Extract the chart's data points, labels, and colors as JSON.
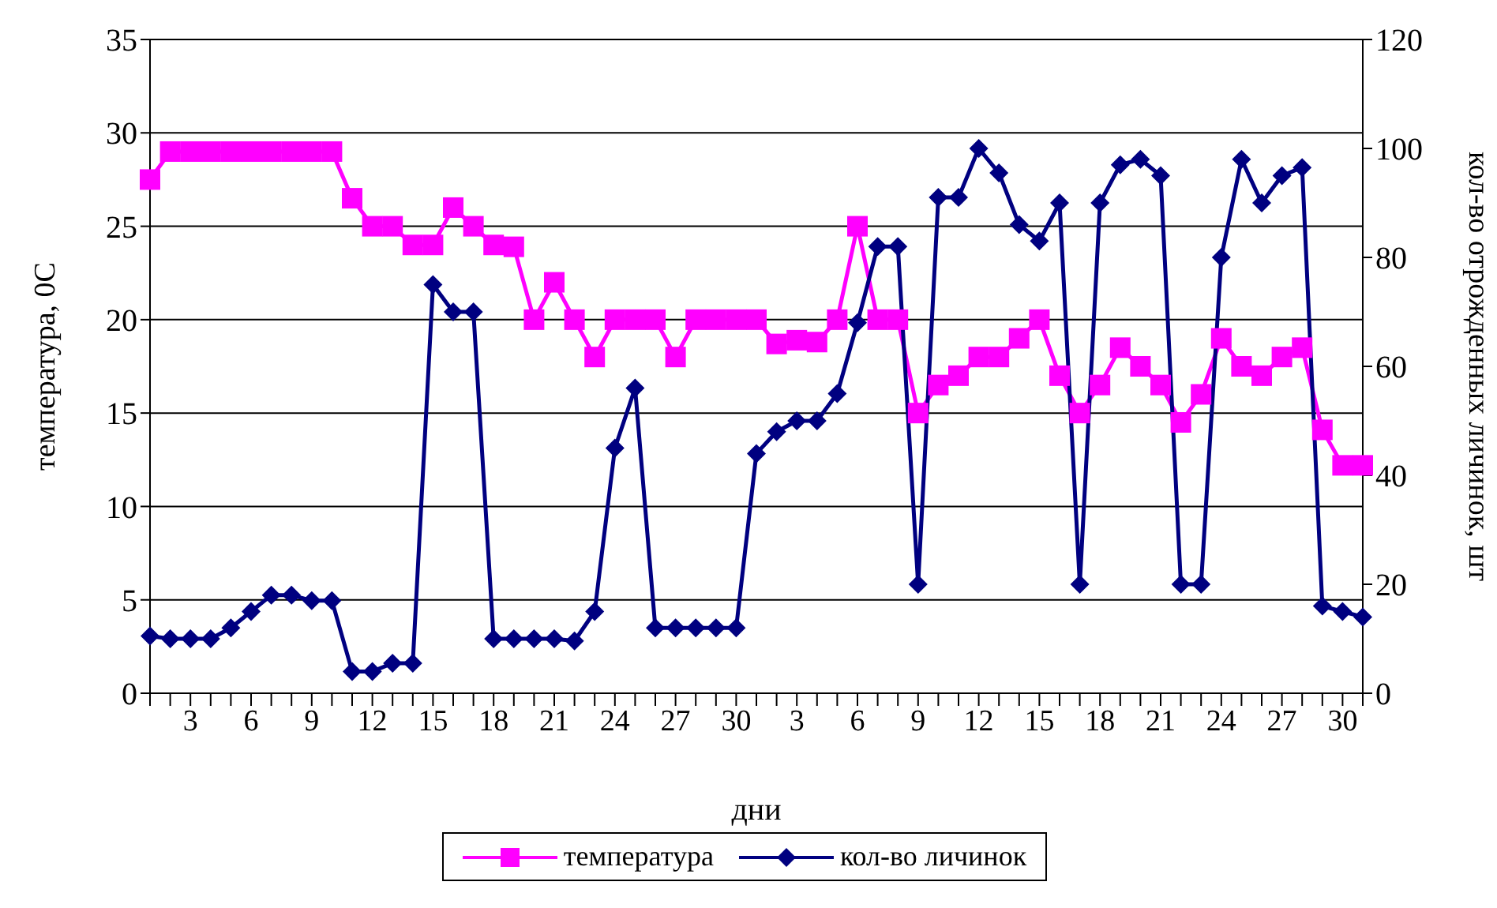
{
  "chart_data": {
    "type": "line",
    "xlabel": "дни",
    "ylabel": "температура, 0C",
    "y2label": "кол-во отрожденных личинок, шт",
    "categories": [
      null,
      null,
      "3",
      null,
      null,
      "6",
      null,
      null,
      "9",
      null,
      null,
      "12",
      null,
      null,
      "15",
      null,
      null,
      "18",
      null,
      null,
      "21",
      null,
      null,
      "24",
      null,
      null,
      "27",
      null,
      null,
      "30",
      null,
      null,
      "3",
      null,
      null,
      "6",
      null,
      null,
      "9",
      null,
      null,
      "12",
      null,
      null,
      "15",
      null,
      null,
      "18",
      null,
      null,
      "21",
      null,
      null,
      "24",
      null,
      null,
      "27",
      null,
      null,
      "30",
      null
    ],
    "series": [
      {
        "name": "температура",
        "color": "#ff00ff",
        "marker": "square",
        "values": [
          27.5,
          29,
          29,
          29,
          29,
          29,
          29,
          29,
          29,
          29,
          26.5,
          25,
          25,
          24,
          24,
          26,
          25,
          24,
          23.9,
          20,
          22,
          20,
          18,
          20,
          20,
          20,
          18,
          20,
          20,
          20,
          20,
          18.7,
          18.9,
          18.8,
          20,
          25,
          20,
          20,
          15,
          16.5,
          17,
          18,
          18,
          19,
          20,
          17,
          15,
          16.5,
          18.5,
          17.5,
          16.5,
          14.5,
          16,
          19,
          17.5,
          17,
          18,
          18.5,
          14.1,
          12.2,
          12.2
        ]
      },
      {
        "name": "кол-во личинок",
        "color": "#000080",
        "marker": "diamond",
        "axis": "y2",
        "values": [
          10.5,
          10,
          10,
          10,
          12,
          15,
          18,
          18,
          17,
          17,
          4,
          4,
          5.5,
          5.5,
          75,
          70,
          70,
          10,
          10,
          10,
          10,
          9.6,
          15,
          45,
          56,
          12,
          12,
          12,
          12,
          12,
          44,
          48,
          50,
          50,
          55,
          68,
          82,
          82,
          20,
          91,
          91,
          100,
          95.5,
          86,
          83,
          90,
          20,
          90,
          97,
          98,
          95,
          20,
          20,
          80,
          98,
          90,
          95,
          96.5,
          16,
          15,
          14
        ]
      }
    ],
    "ylim": [
      0,
      35
    ],
    "yticks": [
      0,
      5,
      10,
      15,
      20,
      25,
      30,
      35
    ],
    "y2lim": [
      0,
      120
    ],
    "y2ticks": [
      0,
      20,
      40,
      60,
      80,
      100,
      120
    ],
    "grid": "y",
    "legend": "bottom"
  }
}
